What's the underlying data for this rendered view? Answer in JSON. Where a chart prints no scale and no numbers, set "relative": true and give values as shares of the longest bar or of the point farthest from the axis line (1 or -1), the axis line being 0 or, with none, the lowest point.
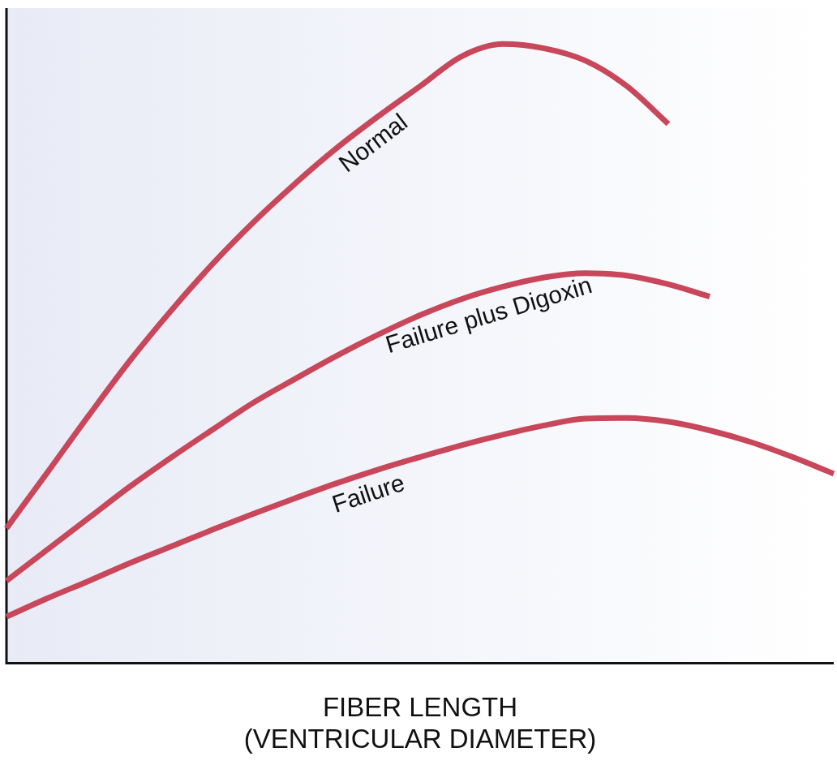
{
  "chart_data": {
    "type": "line",
    "relative": true,
    "xlabel": "FIBER LENGTH\n(VENTRICULAR DIAMETER)",
    "legend": false,
    "grid": false,
    "marker": "none",
    "line_style": "solid",
    "categories": [
      null,
      null,
      null,
      null,
      null,
      null,
      null,
      null,
      null,
      null,
      null,
      null,
      null,
      null,
      null,
      null,
      null,
      null,
      null,
      null,
      null
    ],
    "series": [
      {
        "name": "Normal",
        "color": "#c8475a",
        "values": [
          0.218,
          0.309,
          0.401,
          0.49,
          0.571,
          0.646,
          0.714,
          0.776,
          0.833,
          0.884,
          0.932,
          0.98,
          1.0,
          0.993,
          0.973,
          0.932,
          0.871,
          null,
          null,
          null,
          null
        ]
      },
      {
        "name": "Failure plus Digoxin",
        "color": "#c8475a",
        "values": [
          0.133,
          0.184,
          0.235,
          0.286,
          0.333,
          0.378,
          0.422,
          0.46,
          0.497,
          0.531,
          0.562,
          0.588,
          0.608,
          0.623,
          0.63,
          0.626,
          0.612,
          0.592,
          null,
          null,
          null
        ]
      },
      {
        "name": "Failure",
        "color": "#c8475a",
        "values": [
          0.075,
          0.105,
          0.133,
          0.162,
          0.189,
          0.216,
          0.242,
          0.267,
          0.291,
          0.313,
          0.333,
          0.352,
          0.369,
          0.384,
          0.395,
          0.396,
          0.39,
          0.376,
          0.357,
          0.333,
          0.306
        ]
      }
    ]
  }
}
